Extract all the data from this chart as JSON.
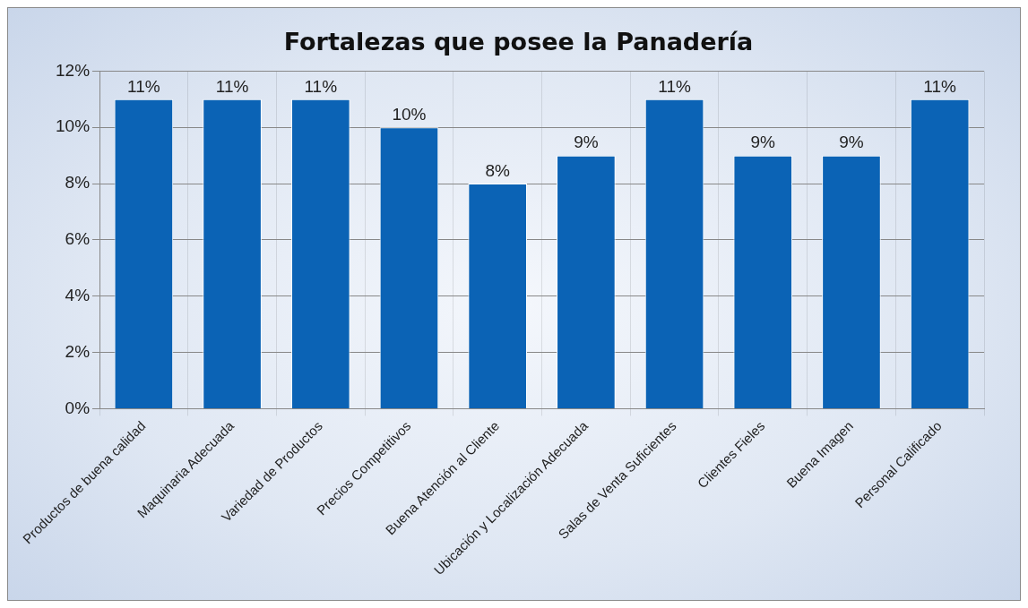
{
  "chart_data": {
    "type": "bar",
    "title": "Fortalezas que posee la Panadería",
    "categories": [
      "Productos de buena calidad",
      "Maquinaria Adecuada",
      "Variedad de Productos",
      "Precios Competitivos",
      "Buena Atención al Cliente",
      "Ubicación y Localización Adecuada",
      "Salas de Venta Suficientes",
      "Clientes Fieles",
      "Buena Imagen",
      "Personal Calificado"
    ],
    "values": [
      11,
      11,
      11,
      10,
      8,
      9,
      11,
      9,
      9,
      11
    ],
    "value_labels": [
      "11%",
      "11%",
      "11%",
      "10%",
      "8%",
      "9%",
      "11%",
      "9%",
      "9%",
      "11%"
    ],
    "color": "#0b63b5",
    "ylim": [
      0,
      12
    ],
    "yticks": [
      {
        "value": 0,
        "label": "0%"
      },
      {
        "value": 2,
        "label": "2%"
      },
      {
        "value": 4,
        "label": "4%"
      },
      {
        "value": 6,
        "label": "6%"
      },
      {
        "value": 8,
        "label": "8%"
      },
      {
        "value": 10,
        "label": "10%"
      },
      {
        "value": 12,
        "label": "12%"
      }
    ],
    "grid": true,
    "legend": false
  }
}
